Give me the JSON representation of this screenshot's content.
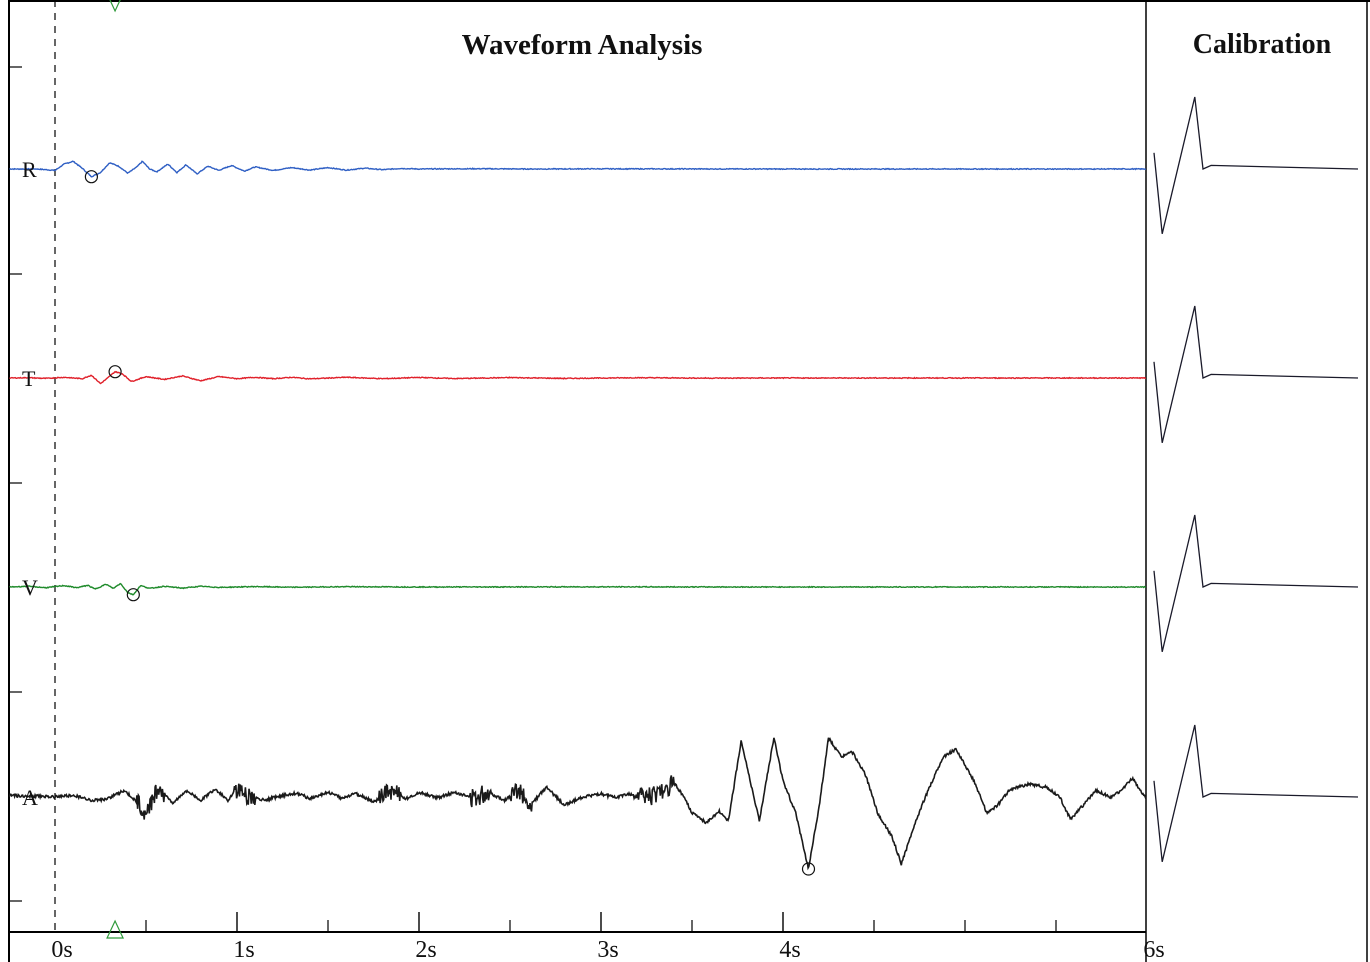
{
  "chart_data": [
    {
      "type": "line",
      "title": "Waveform Analysis",
      "x_unit": "s",
      "xlim": [
        -0.25,
        6.0
      ],
      "x_ticks": [
        {
          "t": 0,
          "label": "0s"
        },
        {
          "t": 1,
          "label": "1s"
        },
        {
          "t": 2,
          "label": "2s"
        },
        {
          "t": 3,
          "label": "3s"
        },
        {
          "t": 4,
          "label": "4s"
        },
        {
          "t": 6,
          "label": "6s"
        }
      ],
      "minor_ticks": [
        0.5,
        1.5,
        2.5,
        3.5,
        4.5,
        5.0,
        5.5
      ],
      "trigger_marker_t": 0.33,
      "colors": {
        "R": "#2f5fc4",
        "T": "#e0202a",
        "V": "#1e8a2a",
        "A": "#1a1a1a",
        "frame": "#000000",
        "marker": "#2e9a3a"
      },
      "series": [
        {
          "name": "R",
          "label": "R",
          "points": [
            [
              -0.25,
              0
            ],
            [
              -0.1,
              0
            ],
            [
              0.0,
              -0.1
            ],
            [
              0.05,
              0.35
            ],
            [
              0.1,
              0.55
            ],
            [
              0.15,
              0.05
            ],
            [
              0.2,
              -0.55
            ],
            [
              0.25,
              -0.25
            ],
            [
              0.3,
              0.45
            ],
            [
              0.35,
              0.2
            ],
            [
              0.4,
              -0.3
            ],
            [
              0.45,
              0.15
            ],
            [
              0.48,
              0.55
            ],
            [
              0.52,
              0.0
            ],
            [
              0.56,
              -0.2
            ],
            [
              0.62,
              0.35
            ],
            [
              0.67,
              -0.25
            ],
            [
              0.72,
              0.3
            ],
            [
              0.78,
              -0.35
            ],
            [
              0.84,
              0.2
            ],
            [
              0.9,
              -0.1
            ],
            [
              0.97,
              0.25
            ],
            [
              1.04,
              -0.15
            ],
            [
              1.1,
              0.15
            ],
            [
              1.2,
              -0.1
            ],
            [
              1.3,
              0.1
            ],
            [
              1.4,
              -0.08
            ],
            [
              1.5,
              0.1
            ],
            [
              1.6,
              -0.08
            ],
            [
              1.7,
              0.06
            ],
            [
              1.8,
              -0.05
            ],
            [
              1.9,
              0.04
            ],
            [
              2.0,
              0.0
            ],
            [
              2.3,
              0.02
            ],
            [
              2.6,
              0.0
            ],
            [
              3.0,
              0.01
            ],
            [
              4.0,
              0.0
            ],
            [
              6.0,
              0.0
            ]
          ],
          "picks": [
            [
              0.2,
              -0.55
            ]
          ]
        },
        {
          "name": "T",
          "label": "T",
          "points": [
            [
              -0.25,
              0
            ],
            [
              -0.15,
              0.02
            ],
            [
              -0.05,
              -0.03
            ],
            [
              0.05,
              0.05
            ],
            [
              0.15,
              -0.05
            ],
            [
              0.2,
              0.2
            ],
            [
              0.25,
              -0.4
            ],
            [
              0.28,
              -0.1
            ],
            [
              0.33,
              0.45
            ],
            [
              0.37,
              0.3
            ],
            [
              0.42,
              -0.25
            ],
            [
              0.5,
              0.1
            ],
            [
              0.6,
              -0.1
            ],
            [
              0.7,
              0.15
            ],
            [
              0.8,
              -0.2
            ],
            [
              0.9,
              0.1
            ],
            [
              1.0,
              -0.05
            ],
            [
              1.1,
              0.05
            ],
            [
              1.2,
              -0.05
            ],
            [
              1.3,
              0.05
            ],
            [
              1.4,
              -0.06
            ],
            [
              1.6,
              0.05
            ],
            [
              1.8,
              -0.05
            ],
            [
              2.0,
              0.04
            ],
            [
              2.2,
              -0.04
            ],
            [
              2.5,
              0.03
            ],
            [
              2.8,
              -0.03
            ],
            [
              3.2,
              0.02
            ],
            [
              3.6,
              -0.01
            ],
            [
              4.0,
              0.0
            ],
            [
              6.0,
              0.0
            ]
          ],
          "picks": [
            [
              0.33,
              0.45
            ]
          ]
        },
        {
          "name": "V",
          "label": "V",
          "points": [
            [
              -0.25,
              0
            ],
            [
              -0.15,
              0.05
            ],
            [
              -0.05,
              -0.05
            ],
            [
              0.05,
              0.1
            ],
            [
              0.12,
              -0.05
            ],
            [
              0.18,
              0.12
            ],
            [
              0.22,
              -0.15
            ],
            [
              0.28,
              0.2
            ],
            [
              0.32,
              -0.1
            ],
            [
              0.36,
              0.25
            ],
            [
              0.4,
              -0.4
            ],
            [
              0.43,
              -0.55
            ],
            [
              0.47,
              0.1
            ],
            [
              0.52,
              -0.1
            ],
            [
              0.6,
              0.05
            ],
            [
              0.7,
              -0.08
            ],
            [
              0.8,
              0.05
            ],
            [
              0.9,
              -0.03
            ],
            [
              1.1,
              0.03
            ],
            [
              1.3,
              -0.02
            ],
            [
              1.6,
              0.02
            ],
            [
              2.0,
              0.0
            ],
            [
              3.0,
              0.01
            ],
            [
              4.0,
              0.0
            ],
            [
              6.0,
              0.0
            ]
          ],
          "picks": [
            [
              0.43,
              -0.55
            ]
          ]
        },
        {
          "name": "A",
          "label": "A",
          "points": [
            [
              -0.25,
              0.1
            ],
            [
              -0.1,
              0.05
            ],
            [
              0.0,
              0.0
            ],
            [
              0.1,
              0.1
            ],
            [
              0.2,
              -0.2
            ],
            [
              0.28,
              -0.15
            ],
            [
              0.38,
              0.4
            ],
            [
              0.43,
              -0.1
            ],
            [
              0.5,
              -1.0
            ],
            [
              0.57,
              0.6
            ],
            [
              0.65,
              -0.4
            ],
            [
              0.72,
              0.4
            ],
            [
              0.8,
              -0.2
            ],
            [
              0.88,
              0.5
            ],
            [
              0.95,
              -0.2
            ],
            [
              1.0,
              0.4
            ],
            [
              1.07,
              0.0
            ],
            [
              1.15,
              -0.2
            ],
            [
              1.25,
              0.1
            ],
            [
              1.33,
              0.25
            ],
            [
              1.4,
              -0.1
            ],
            [
              1.5,
              0.3
            ],
            [
              1.58,
              -0.1
            ],
            [
              1.65,
              0.25
            ],
            [
              1.75,
              -0.3
            ],
            [
              1.85,
              0.35
            ],
            [
              1.93,
              -0.1
            ],
            [
              2.0,
              0.3
            ],
            [
              2.1,
              -0.05
            ],
            [
              2.2,
              0.3
            ],
            [
              2.3,
              -0.1
            ],
            [
              2.38,
              0.3
            ],
            [
              2.47,
              -0.2
            ],
            [
              2.55,
              0.4
            ],
            [
              2.62,
              -0.4
            ],
            [
              2.7,
              0.6
            ],
            [
              2.8,
              -0.5
            ],
            [
              2.9,
              0.0
            ],
            [
              3.0,
              0.2
            ],
            [
              3.08,
              -0.05
            ],
            [
              3.15,
              0.2
            ],
            [
              3.25,
              -0.05
            ],
            [
              3.32,
              0.25
            ],
            [
              3.4,
              0.9
            ],
            [
              3.45,
              0.1
            ],
            [
              3.5,
              -1.0
            ],
            [
              3.58,
              -1.6
            ],
            [
              3.65,
              -0.9
            ],
            [
              3.7,
              -1.5
            ],
            [
              3.77,
              3.5
            ],
            [
              3.83,
              0.5
            ],
            [
              3.87,
              -1.5
            ],
            [
              3.95,
              3.7
            ],
            [
              4.0,
              1.0
            ],
            [
              4.07,
              -1.0
            ],
            [
              4.14,
              -4.5
            ],
            [
              4.2,
              -0.5
            ],
            [
              4.25,
              3.7
            ],
            [
              4.32,
              2.5
            ],
            [
              4.38,
              2.8
            ],
            [
              4.45,
              1.5
            ],
            [
              4.52,
              -1.0
            ],
            [
              4.6,
              -2.5
            ],
            [
              4.65,
              -4.2
            ],
            [
              4.73,
              -1.5
            ],
            [
              4.8,
              0.5
            ],
            [
              4.88,
              2.5
            ],
            [
              4.95,
              3.0
            ],
            [
              5.05,
              1.0
            ],
            [
              5.12,
              -1.0
            ],
            [
              5.18,
              -0.5
            ],
            [
              5.25,
              0.5
            ],
            [
              5.35,
              0.8
            ],
            [
              5.45,
              0.6
            ],
            [
              5.52,
              0.0
            ],
            [
              5.58,
              -1.4
            ],
            [
              5.65,
              -0.5
            ],
            [
              5.72,
              0.4
            ],
            [
              5.8,
              0.0
            ],
            [
              5.86,
              0.4
            ],
            [
              5.92,
              1.2
            ],
            [
              5.97,
              0.3
            ],
            [
              6.03,
              -0.6
            ],
            [
              6.08,
              -0.4
            ],
            [
              6.14,
              0.2
            ],
            [
              6.2,
              0.0
            ]
          ],
          "noisy_spans": [
            [
              0.45,
              0.6
            ],
            [
              0.98,
              1.1
            ],
            [
              1.78,
              1.9
            ],
            [
              2.28,
              2.4
            ],
            [
              2.5,
              2.62
            ],
            [
              3.18,
              3.4
            ]
          ],
          "picks": [
            [
              4.14,
              -4.5
            ]
          ]
        }
      ]
    },
    {
      "type": "line",
      "title": "Calibration",
      "series": [
        {
          "name": "R",
          "points": [
            [
              0,
              0.45
            ],
            [
              0.04,
              -1.8
            ],
            [
              0.2,
              2.0
            ],
            [
              0.24,
              0.0
            ],
            [
              0.28,
              0.1
            ],
            [
              1.0,
              0.0
            ]
          ]
        },
        {
          "name": "T",
          "points": [
            [
              0,
              0.45
            ],
            [
              0.04,
              -1.8
            ],
            [
              0.2,
              2.0
            ],
            [
              0.24,
              0.0
            ],
            [
              0.28,
              0.1
            ],
            [
              1.0,
              0.0
            ]
          ]
        },
        {
          "name": "V",
          "points": [
            [
              0,
              0.45
            ],
            [
              0.04,
              -1.8
            ],
            [
              0.2,
              2.0
            ],
            [
              0.24,
              0.0
            ],
            [
              0.28,
              0.1
            ],
            [
              1.0,
              0.0
            ]
          ]
        },
        {
          "name": "A",
          "points": [
            [
              0,
              0.45
            ],
            [
              0.04,
              -1.8
            ],
            [
              0.2,
              2.0
            ],
            [
              0.24,
              0.0
            ],
            [
              0.28,
              0.1
            ],
            [
              1.0,
              0.0
            ]
          ]
        }
      ]
    }
  ]
}
